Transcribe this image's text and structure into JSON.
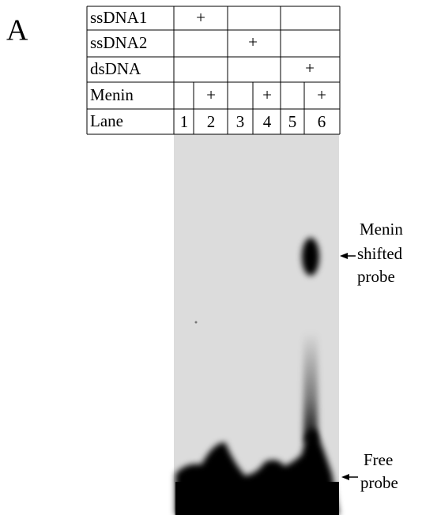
{
  "panel_label": "A",
  "table": {
    "rows": [
      {
        "label": "ssDNA1",
        "cells": [
          "+"
        ]
      },
      {
        "label": "ssDNA2",
        "cells": [
          "+"
        ]
      },
      {
        "label": "dsDNA",
        "cells": [
          "+"
        ]
      },
      {
        "label": "Menin",
        "cells": [
          "+",
          "+",
          "+"
        ]
      },
      {
        "label": "Lane",
        "cells": [
          "1",
          "2",
          "3",
          "4",
          "5",
          "6"
        ]
      }
    ]
  },
  "shifted_band_label": [
    "Menin",
    "shifted",
    "probe"
  ],
  "free_band_label": [
    "Free",
    "probe"
  ]
}
